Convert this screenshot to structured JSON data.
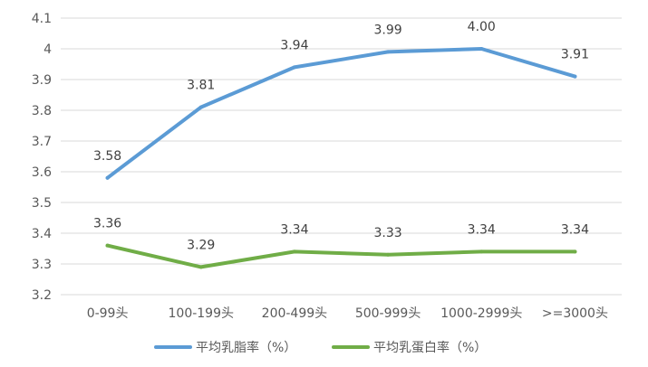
{
  "chart_data": {
    "type": "line",
    "categories": [
      "0-99头",
      "100-199头",
      "200-499头",
      "500-999头",
      "1000-2999头",
      ">=3000头"
    ],
    "series": [
      {
        "name": "平均乳脂率（%）",
        "values": [
          3.58,
          3.81,
          3.94,
          3.99,
          4.0,
          3.91
        ],
        "labels": [
          "3.58",
          "3.81",
          "3.94",
          "3.99",
          "4.00",
          "3.91"
        ],
        "color": "#5b9bd5"
      },
      {
        "name": "平均乳蛋白率（%）",
        "values": [
          3.36,
          3.29,
          3.34,
          3.33,
          3.34,
          3.34
        ],
        "labels": [
          "3.36",
          "3.29",
          "3.34",
          "3.33",
          "3.34",
          "3.34"
        ],
        "color": "#70ad47"
      }
    ],
    "ylim": [
      3.2,
      4.1
    ],
    "yticks": [
      3.2,
      3.3,
      3.4,
      3.5,
      3.6,
      3.7,
      3.8,
      3.9,
      4.0,
      4.1
    ],
    "ytick_labels": [
      "3.2",
      "3.3",
      "3.4",
      "3.5",
      "3.6",
      "3.7",
      "3.8",
      "3.9",
      "4",
      "4.1"
    ],
    "grid": true,
    "legend": "bottom"
  }
}
